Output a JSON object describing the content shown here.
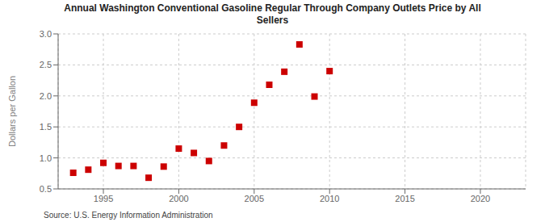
{
  "chart_data": {
    "type": "scatter",
    "title": "Annual Washington Conventional Gasoline Regular Through Company Outlets Price by All\nSellers",
    "y_label": "Dollars per Gallon",
    "annotations": [
      "Source: U.S. Energy Information Administration"
    ],
    "x": [
      1993,
      1994,
      1995,
      1996,
      1997,
      1998,
      1999,
      2000,
      2001,
      2002,
      2003,
      2004,
      2005,
      2006,
      2007,
      2008,
      2009,
      2010
    ],
    "values": [
      0.76,
      0.81,
      0.92,
      0.87,
      0.87,
      0.68,
      0.86,
      1.15,
      1.08,
      0.95,
      1.2,
      1.5,
      1.89,
      2.18,
      2.39,
      2.83,
      1.99,
      2.4
    ],
    "color": "#cc0000",
    "marker": "square",
    "xlim": [
      1992,
      2023
    ],
    "ylim": [
      0.5,
      3.0
    ],
    "xticks": [
      1995,
      2000,
      2005,
      2010,
      2015,
      2020
    ],
    "yticks": [
      0.5,
      {
        "value": 1,
        "label": "1.0"
      },
      1.5,
      {
        "value": 2,
        "label": "2.0"
      },
      2.5,
      {
        "value": 3,
        "label": "3.0"
      }
    ],
    "grid": true
  }
}
